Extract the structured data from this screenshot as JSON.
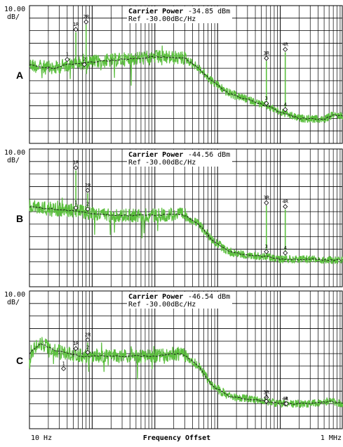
{
  "chart_data": [
    {
      "panel": "A",
      "type": "line",
      "scale_label_top": "10.00",
      "scale_label_unit": "dB/",
      "carrier_label": "Carrier Power",
      "carrier_value": "-34.85 dBm",
      "ref_label": "Ref -30.00dBc/Hz",
      "x_log_range": [
        10,
        1000000
      ],
      "y_divisions_below_ref": 11,
      "trace_level_div": [
        [
          10,
          4.7
        ],
        [
          15,
          4.9
        ],
        [
          25,
          5.0
        ],
        [
          40,
          4.7
        ],
        [
          60,
          4.6
        ],
        [
          100,
          4.5
        ],
        [
          300,
          4.3
        ],
        [
          1000,
          4.1
        ],
        [
          3000,
          4.2
        ],
        [
          5000,
          5.0
        ],
        [
          8000,
          6.0
        ],
        [
          15000,
          7.0
        ],
        [
          30000,
          7.5
        ],
        [
          60000,
          8.0
        ],
        [
          100000,
          8.5
        ],
        [
          200000,
          9.0
        ],
        [
          500000,
          9.1
        ],
        [
          700000,
          8.7
        ],
        [
          1000000,
          8.8
        ]
      ],
      "markers": [
        {
          "label": "1",
          "freq": 40,
          "level_div": 4.3
        },
        {
          "label": "1R",
          "freq": 55,
          "level_div": 1.9
        },
        {
          "label": "2R",
          "freq": 80,
          "level_div": 1.3
        },
        {
          "label": "2",
          "freq": 75,
          "level_div": 4.7
        },
        {
          "label": "3R",
          "freq": 60000,
          "level_div": 4.2
        },
        {
          "label": "3",
          "freq": 60000,
          "level_div": 7.8
        },
        {
          "label": "4R",
          "freq": 120000,
          "level_div": 3.5
        },
        {
          "label": "4",
          "freq": 120000,
          "level_div": 8.3
        }
      ]
    },
    {
      "panel": "B",
      "type": "line",
      "scale_label_top": "10.00",
      "scale_label_unit": "dB/",
      "carrier_label": "Carrier Power",
      "carrier_value": "-44.56 dBm",
      "ref_label": "Ref -30.00dBc/Hz",
      "x_log_range": [
        10,
        1000000
      ],
      "y_divisions_below_ref": 11,
      "trace_level_div": [
        [
          10,
          4.6
        ],
        [
          15,
          4.7
        ],
        [
          25,
          4.8
        ],
        [
          40,
          4.9
        ],
        [
          70,
          5.0
        ],
        [
          100,
          5.2
        ],
        [
          300,
          5.3
        ],
        [
          1000,
          5.3
        ],
        [
          2000,
          5.2
        ],
        [
          3000,
          5.3
        ],
        [
          5000,
          6.0
        ],
        [
          8000,
          7.2
        ],
        [
          15000,
          8.2
        ],
        [
          30000,
          8.5
        ],
        [
          60000,
          8.6
        ],
        [
          100000,
          8.8
        ],
        [
          300000,
          8.8
        ],
        [
          1000000,
          8.9
        ]
      ],
      "markers": [
        {
          "label": "1R",
          "freq": 55,
          "level_div": 1.5
        },
        {
          "label": "1",
          "freq": 55,
          "level_div": 4.7
        },
        {
          "label": "2R",
          "freq": 85,
          "level_div": 3.3
        },
        {
          "label": "2",
          "freq": 85,
          "level_div": 4.8
        },
        {
          "label": "3R",
          "freq": 60000,
          "level_div": 4.3
        },
        {
          "label": "3",
          "freq": 60000,
          "level_div": 8.2
        },
        {
          "label": "4R",
          "freq": 120000,
          "level_div": 4.6
        },
        {
          "label": "4",
          "freq": 120000,
          "level_div": 8.3
        }
      ]
    },
    {
      "panel": "C",
      "type": "line",
      "scale_label_top": "10.00",
      "scale_label_unit": "dB/",
      "carrier_label": "Carrier Power",
      "carrier_value": "-46.54 dBm",
      "ref_label": "Ref -30.00dBc/Hz",
      "x_log_range": [
        10,
        1000000
      ],
      "y_divisions_below_ref": 11,
      "trace_level_div": [
        [
          10,
          5.0
        ],
        [
          12,
          4.6
        ],
        [
          15,
          4.2
        ],
        [
          25,
          4.7
        ],
        [
          40,
          5.0
        ],
        [
          70,
          5.2
        ],
        [
          100,
          5.2
        ],
        [
          300,
          5.2
        ],
        [
          1000,
          5.2
        ],
        [
          2000,
          5.0
        ],
        [
          3000,
          5.1
        ],
        [
          5000,
          6.0
        ],
        [
          8000,
          7.5
        ],
        [
          15000,
          8.4
        ],
        [
          30000,
          8.6
        ],
        [
          60000,
          8.8
        ],
        [
          100000,
          9.0
        ],
        [
          300000,
          9.0
        ],
        [
          600000,
          8.8
        ],
        [
          1000000,
          9.0
        ]
      ],
      "markers": [
        {
          "label": "1",
          "freq": 35,
          "level_div": 6.2
        },
        {
          "label": "1R",
          "freq": 55,
          "level_div": 4.6
        },
        {
          "label": "2R",
          "freq": 85,
          "level_div": 3.9
        },
        {
          "label": "2",
          "freq": 85,
          "level_div": 4.9
        },
        {
          "label": "3R",
          "freq": 60000,
          "level_div": 8.5
        },
        {
          "label": "3",
          "freq": 60000,
          "level_div": 8.8
        },
        {
          "label": "4R",
          "freq": 120000,
          "level_div": 9.0
        },
        {
          "label": "4",
          "freq": 125000,
          "level_div": 9.0
        }
      ]
    }
  ],
  "x_axis": {
    "start_label": "10 Hz",
    "title": "Frequency Offset",
    "end_label": "1 MHz"
  },
  "colors": {
    "trace": "#5cbf3f",
    "average": "#1a1a1a",
    "grid": "#000000"
  }
}
